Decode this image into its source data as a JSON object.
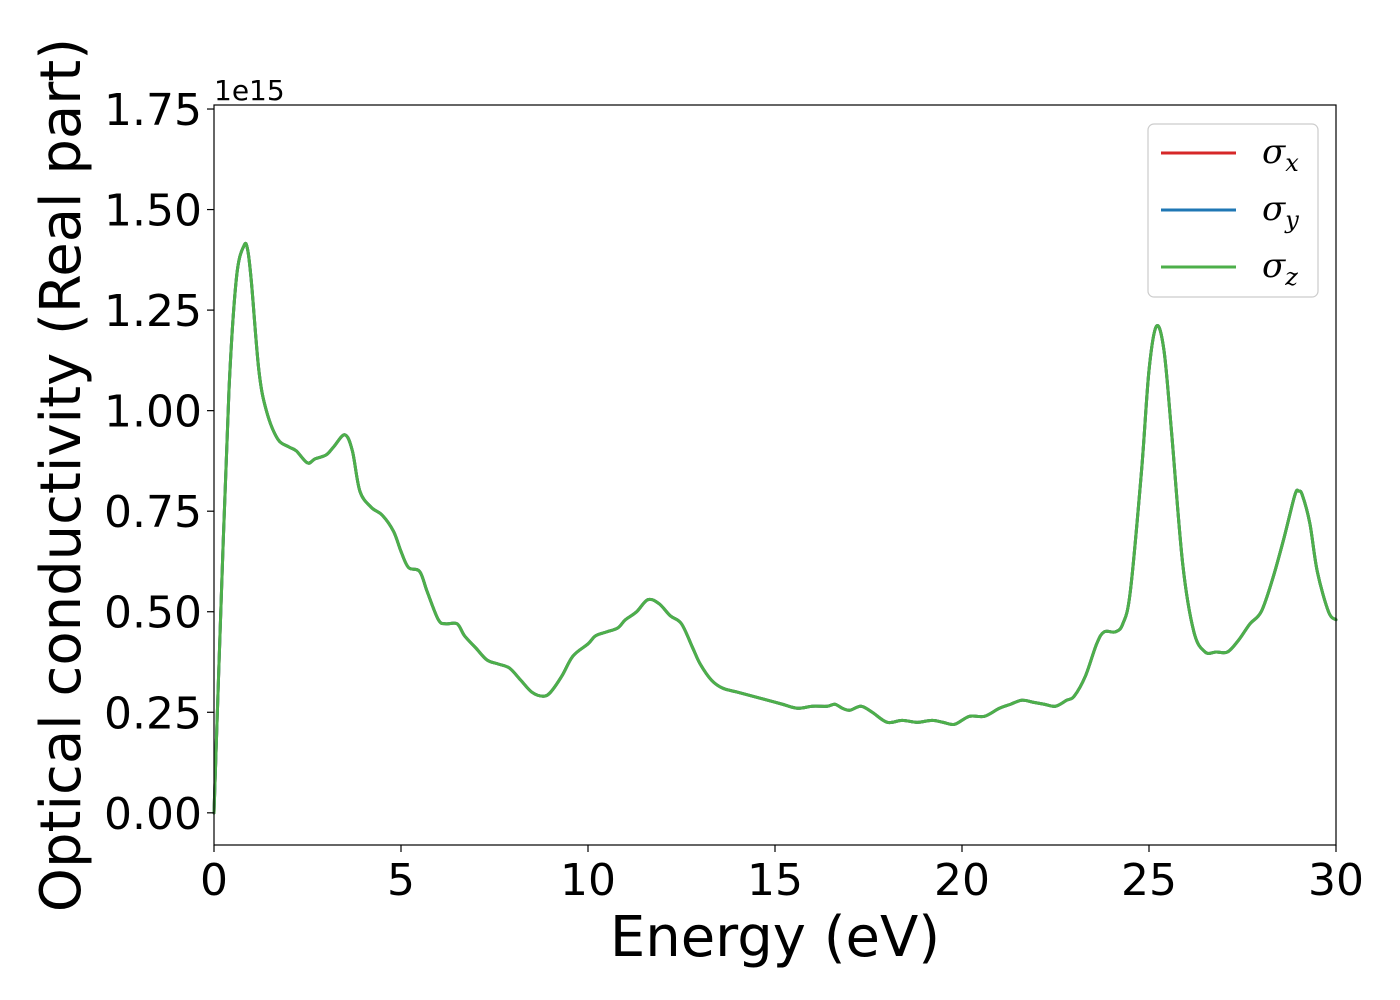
{
  "chart_data": {
    "type": "line",
    "xlabel": "Energy (eV)",
    "ylabel": "Optical conductivity (Real part)",
    "y_offset_text": "1e15",
    "xlim": [
      0,
      30
    ],
    "ylim": [
      -0.08,
      1.76
    ],
    "grid": false,
    "legend_position": "top-right",
    "xticks": [
      0,
      5,
      10,
      15,
      20,
      25,
      30
    ],
    "xtick_labels": [
      "0",
      "5",
      "10",
      "15",
      "20",
      "25",
      "30"
    ],
    "yticks": [
      0.0,
      0.25,
      0.5,
      0.75,
      1.0,
      1.25,
      1.5,
      1.75
    ],
    "ytick_labels": [
      "0.00",
      "0.25",
      "0.50",
      "0.75",
      "1.00",
      "1.25",
      "1.50",
      "1.75"
    ],
    "x": [
      0,
      0.2,
      0.4,
      0.6,
      0.8,
      0.9,
      1.0,
      1.2,
      1.4,
      1.7,
      2.0,
      2.2,
      2.5,
      2.7,
      3.0,
      3.2,
      3.5,
      3.7,
      3.9,
      4.2,
      4.5,
      4.8,
      5.0,
      5.2,
      5.5,
      5.7,
      6.0,
      6.2,
      6.5,
      6.7,
      7.0,
      7.3,
      7.6,
      7.9,
      8.2,
      8.5,
      8.8,
      9.0,
      9.3,
      9.6,
      10.0,
      10.2,
      10.5,
      10.8,
      11.0,
      11.3,
      11.6,
      11.9,
      12.2,
      12.5,
      12.8,
      13.0,
      13.3,
      13.6,
      14.0,
      14.4,
      14.8,
      15.2,
      15.6,
      16.0,
      16.4,
      16.6,
      16.8,
      17.0,
      17.3,
      17.6,
      18.0,
      18.4,
      18.8,
      19.2,
      19.5,
      19.8,
      20.2,
      20.6,
      21.0,
      21.3,
      21.6,
      21.9,
      22.2,
      22.5,
      22.8,
      23.0,
      23.3,
      23.6,
      23.8,
      24.1,
      24.3,
      24.5,
      24.8,
      25.0,
      25.2,
      25.4,
      25.6,
      25.9,
      26.2,
      26.5,
      26.8,
      27.1,
      27.4,
      27.7,
      28.0,
      28.3,
      28.6,
      28.9,
      29.0,
      29.1,
      29.3,
      29.5,
      29.8,
      30.0
    ],
    "series": [
      {
        "name": "σx",
        "label_main": "σ",
        "label_sub": "x",
        "color": "#d62728",
        "values": [
          0.0,
          0.55,
          1.05,
          1.33,
          1.41,
          1.4,
          1.32,
          1.1,
          1.0,
          0.93,
          0.91,
          0.9,
          0.87,
          0.88,
          0.89,
          0.91,
          0.94,
          0.9,
          0.8,
          0.76,
          0.74,
          0.7,
          0.65,
          0.61,
          0.6,
          0.55,
          0.48,
          0.47,
          0.47,
          0.44,
          0.41,
          0.38,
          0.37,
          0.36,
          0.33,
          0.3,
          0.29,
          0.3,
          0.34,
          0.39,
          0.42,
          0.44,
          0.45,
          0.46,
          0.48,
          0.5,
          0.53,
          0.52,
          0.49,
          0.47,
          0.41,
          0.37,
          0.33,
          0.31,
          0.3,
          0.29,
          0.28,
          0.27,
          0.26,
          0.265,
          0.265,
          0.27,
          0.26,
          0.255,
          0.265,
          0.25,
          0.225,
          0.23,
          0.225,
          0.23,
          0.225,
          0.22,
          0.24,
          0.24,
          0.26,
          0.27,
          0.28,
          0.275,
          0.27,
          0.265,
          0.28,
          0.29,
          0.34,
          0.42,
          0.45,
          0.45,
          0.47,
          0.55,
          0.85,
          1.1,
          1.21,
          1.15,
          0.95,
          0.62,
          0.45,
          0.4,
          0.4,
          0.4,
          0.43,
          0.47,
          0.5,
          0.58,
          0.68,
          0.79,
          0.8,
          0.79,
          0.72,
          0.6,
          0.5,
          0.48
        ]
      },
      {
        "name": "σy",
        "label_main": "σ",
        "label_sub": "y",
        "color": "#1f77b4",
        "values": [
          0.0,
          0.55,
          1.05,
          1.33,
          1.41,
          1.4,
          1.32,
          1.1,
          1.0,
          0.93,
          0.91,
          0.9,
          0.87,
          0.88,
          0.89,
          0.91,
          0.94,
          0.9,
          0.8,
          0.76,
          0.74,
          0.7,
          0.65,
          0.61,
          0.6,
          0.55,
          0.48,
          0.47,
          0.47,
          0.44,
          0.41,
          0.38,
          0.37,
          0.36,
          0.33,
          0.3,
          0.29,
          0.3,
          0.34,
          0.39,
          0.42,
          0.44,
          0.45,
          0.46,
          0.48,
          0.5,
          0.53,
          0.52,
          0.49,
          0.47,
          0.41,
          0.37,
          0.33,
          0.31,
          0.3,
          0.29,
          0.28,
          0.27,
          0.26,
          0.265,
          0.265,
          0.27,
          0.26,
          0.255,
          0.265,
          0.25,
          0.225,
          0.23,
          0.225,
          0.23,
          0.225,
          0.22,
          0.24,
          0.24,
          0.26,
          0.27,
          0.28,
          0.275,
          0.27,
          0.265,
          0.28,
          0.29,
          0.34,
          0.42,
          0.45,
          0.45,
          0.47,
          0.55,
          0.85,
          1.1,
          1.21,
          1.15,
          0.95,
          0.62,
          0.45,
          0.4,
          0.4,
          0.4,
          0.43,
          0.47,
          0.5,
          0.58,
          0.68,
          0.79,
          0.8,
          0.79,
          0.72,
          0.6,
          0.5,
          0.48
        ]
      },
      {
        "name": "σz",
        "label_main": "σ",
        "label_sub": "z",
        "color": "#4daf4a",
        "values": [
          0.0,
          0.55,
          1.05,
          1.33,
          1.41,
          1.4,
          1.32,
          1.1,
          1.0,
          0.93,
          0.91,
          0.9,
          0.87,
          0.88,
          0.89,
          0.91,
          0.94,
          0.9,
          0.8,
          0.76,
          0.74,
          0.7,
          0.65,
          0.61,
          0.6,
          0.55,
          0.48,
          0.47,
          0.47,
          0.44,
          0.41,
          0.38,
          0.37,
          0.36,
          0.33,
          0.3,
          0.29,
          0.3,
          0.34,
          0.39,
          0.42,
          0.44,
          0.45,
          0.46,
          0.48,
          0.5,
          0.53,
          0.52,
          0.49,
          0.47,
          0.41,
          0.37,
          0.33,
          0.31,
          0.3,
          0.29,
          0.28,
          0.27,
          0.26,
          0.265,
          0.265,
          0.27,
          0.26,
          0.255,
          0.265,
          0.25,
          0.225,
          0.23,
          0.225,
          0.23,
          0.225,
          0.22,
          0.24,
          0.24,
          0.26,
          0.27,
          0.28,
          0.275,
          0.27,
          0.265,
          0.28,
          0.29,
          0.34,
          0.42,
          0.45,
          0.45,
          0.47,
          0.55,
          0.85,
          1.1,
          1.21,
          1.15,
          0.95,
          0.62,
          0.45,
          0.4,
          0.4,
          0.4,
          0.43,
          0.47,
          0.5,
          0.58,
          0.68,
          0.79,
          0.8,
          0.79,
          0.72,
          0.6,
          0.5,
          0.48
        ]
      }
    ]
  }
}
